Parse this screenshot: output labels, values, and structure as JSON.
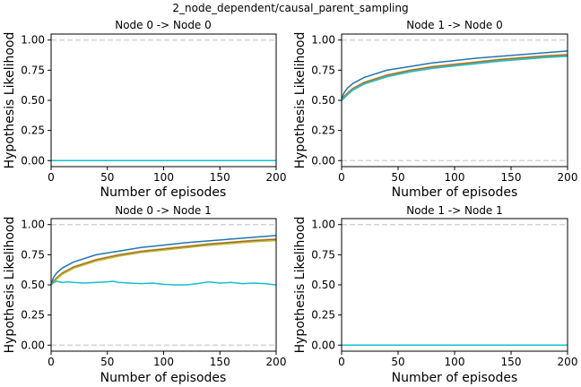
{
  "figure": {
    "suptitle": "2_node_dependent/causal_parent_sampling"
  },
  "chart_data": [
    {
      "type": "line",
      "title": "Node 0 -> Node 0",
      "xlabel": "Number of episodes",
      "ylabel": "Hypothesis Likelihood",
      "xlim": [
        0,
        200
      ],
      "ylim": [
        -0.05,
        1.05
      ],
      "xticks": [
        "0",
        "50",
        "100",
        "150",
        "200"
      ],
      "yticks": [
        "0.00",
        "0.25",
        "0.50",
        "0.75",
        "1.00"
      ],
      "reference_lines": [
        0.0,
        1.0
      ],
      "grid": false,
      "series": [
        {
          "color": "#17becf",
          "x": [
            0,
            200
          ],
          "y": [
            0.0,
            0.0
          ]
        }
      ]
    },
    {
      "type": "line",
      "title": "Node 1 -> Node 0",
      "xlabel": "Number of episodes",
      "ylabel": "Hypothesis Likelihood",
      "xlim": [
        0,
        200
      ],
      "ylim": [
        -0.05,
        1.05
      ],
      "xticks": [
        "0",
        "50",
        "100",
        "150",
        "200"
      ],
      "yticks": [
        "0.00",
        "0.25",
        "0.50",
        "0.75",
        "1.00"
      ],
      "reference_lines": [
        0.0,
        1.0
      ],
      "grid": false,
      "series": [
        {
          "color": "#1f77b4",
          "x": [
            0,
            2,
            5,
            10,
            20,
            40,
            60,
            80,
            100,
            120,
            140,
            160,
            180,
            200
          ],
          "y": [
            0.5,
            0.56,
            0.6,
            0.64,
            0.69,
            0.75,
            0.78,
            0.81,
            0.83,
            0.85,
            0.865,
            0.88,
            0.895,
            0.91
          ]
        },
        {
          "color": "#ff7f0e",
          "x": [
            0,
            2,
            5,
            10,
            20,
            40,
            60,
            80,
            100,
            120,
            140,
            160,
            180,
            200
          ],
          "y": [
            0.5,
            0.53,
            0.56,
            0.6,
            0.65,
            0.71,
            0.75,
            0.78,
            0.8,
            0.82,
            0.84,
            0.855,
            0.87,
            0.88
          ]
        },
        {
          "color": "#2ca02c",
          "x": [
            0,
            2,
            5,
            10,
            20,
            40,
            60,
            80,
            100,
            120,
            140,
            160,
            180,
            200
          ],
          "y": [
            0.5,
            0.525,
            0.555,
            0.595,
            0.645,
            0.705,
            0.745,
            0.775,
            0.795,
            0.815,
            0.835,
            0.85,
            0.865,
            0.875
          ]
        },
        {
          "color": "#d62728",
          "x": [
            0,
            2,
            5,
            10,
            20,
            40,
            60,
            80,
            100,
            120,
            140,
            160,
            180,
            200
          ],
          "y": [
            0.5,
            0.522,
            0.552,
            0.592,
            0.642,
            0.702,
            0.742,
            0.772,
            0.792,
            0.812,
            0.832,
            0.847,
            0.862,
            0.872
          ]
        },
        {
          "color": "#9467bd",
          "x": [
            0,
            2,
            5,
            10,
            20,
            40,
            60,
            80,
            100,
            120,
            140,
            160,
            180,
            200
          ],
          "y": [
            0.5,
            0.52,
            0.55,
            0.59,
            0.64,
            0.7,
            0.74,
            0.77,
            0.79,
            0.81,
            0.83,
            0.845,
            0.86,
            0.87
          ]
        },
        {
          "color": "#bcbd22",
          "x": [
            0,
            2,
            5,
            10,
            20,
            40,
            60,
            80,
            100,
            120,
            140,
            160,
            180,
            200
          ],
          "y": [
            0.5,
            0.518,
            0.548,
            0.588,
            0.638,
            0.698,
            0.738,
            0.768,
            0.788,
            0.808,
            0.828,
            0.843,
            0.858,
            0.868
          ]
        },
        {
          "color": "#17becf",
          "x": [
            0,
            2,
            5,
            10,
            20,
            40,
            60,
            80,
            100,
            120,
            140,
            160,
            180,
            200
          ],
          "y": [
            0.5,
            0.515,
            0.545,
            0.585,
            0.635,
            0.695,
            0.735,
            0.765,
            0.785,
            0.805,
            0.825,
            0.84,
            0.855,
            0.865
          ]
        }
      ]
    },
    {
      "type": "line",
      "title": "Node 0 -> Node 1",
      "xlabel": "Number of episodes",
      "ylabel": "Hypothesis Likelihood",
      "xlim": [
        0,
        200
      ],
      "ylim": [
        -0.05,
        1.05
      ],
      "xticks": [
        "0",
        "50",
        "100",
        "150",
        "200"
      ],
      "yticks": [
        "0.00",
        "0.25",
        "0.50",
        "0.75",
        "1.00"
      ],
      "reference_lines": [
        0.0,
        1.0
      ],
      "grid": false,
      "series": [
        {
          "color": "#1f77b4",
          "x": [
            0,
            2,
            5,
            10,
            20,
            40,
            60,
            80,
            100,
            120,
            140,
            160,
            180,
            200
          ],
          "y": [
            0.5,
            0.56,
            0.6,
            0.64,
            0.69,
            0.75,
            0.78,
            0.81,
            0.83,
            0.85,
            0.865,
            0.88,
            0.895,
            0.91
          ]
        },
        {
          "color": "#ff7f0e",
          "x": [
            0,
            2,
            5,
            10,
            20,
            40,
            60,
            80,
            100,
            120,
            140,
            160,
            180,
            200
          ],
          "y": [
            0.5,
            0.53,
            0.56,
            0.6,
            0.65,
            0.71,
            0.75,
            0.78,
            0.8,
            0.82,
            0.84,
            0.855,
            0.87,
            0.88
          ]
        },
        {
          "color": "#2ca02c",
          "x": [
            0,
            2,
            5,
            10,
            20,
            40,
            60,
            80,
            100,
            120,
            140,
            160,
            180,
            200
          ],
          "y": [
            0.5,
            0.525,
            0.555,
            0.595,
            0.645,
            0.705,
            0.745,
            0.775,
            0.795,
            0.815,
            0.835,
            0.85,
            0.865,
            0.875
          ]
        },
        {
          "color": "#d62728",
          "x": [
            0,
            2,
            5,
            10,
            20,
            40,
            60,
            80,
            100,
            120,
            140,
            160,
            180,
            200
          ],
          "y": [
            0.5,
            0.522,
            0.552,
            0.592,
            0.642,
            0.702,
            0.742,
            0.772,
            0.792,
            0.812,
            0.832,
            0.847,
            0.862,
            0.872
          ]
        },
        {
          "color": "#9467bd",
          "x": [
            0,
            2,
            5,
            10,
            20,
            40,
            60,
            80,
            100,
            120,
            140,
            160,
            180,
            200
          ],
          "y": [
            0.5,
            0.52,
            0.55,
            0.59,
            0.64,
            0.7,
            0.74,
            0.77,
            0.79,
            0.81,
            0.83,
            0.845,
            0.86,
            0.87
          ]
        },
        {
          "color": "#bcbd22",
          "x": [
            0,
            2,
            5,
            10,
            20,
            40,
            60,
            80,
            100,
            120,
            140,
            160,
            180,
            200
          ],
          "y": [
            0.5,
            0.518,
            0.548,
            0.588,
            0.638,
            0.698,
            0.738,
            0.768,
            0.788,
            0.808,
            0.828,
            0.843,
            0.858,
            0.868
          ]
        },
        {
          "color": "#17becf",
          "x": [
            0,
            5,
            10,
            15,
            20,
            30,
            40,
            50,
            55,
            60,
            70,
            80,
            90,
            100,
            110,
            120,
            125,
            130,
            140,
            150,
            160,
            170,
            180,
            190,
            200
          ],
          "y": [
            0.51,
            0.53,
            0.52,
            0.525,
            0.52,
            0.515,
            0.52,
            0.525,
            0.53,
            0.52,
            0.515,
            0.51,
            0.515,
            0.505,
            0.5,
            0.5,
            0.505,
            0.51,
            0.525,
            0.515,
            0.52,
            0.51,
            0.515,
            0.51,
            0.5
          ]
        }
      ]
    },
    {
      "type": "line",
      "title": "Node 1 -> Node 1",
      "xlabel": "Number of episodes",
      "ylabel": "Hypothesis Likelihood",
      "xlim": [
        0,
        200
      ],
      "ylim": [
        -0.05,
        1.05
      ],
      "xticks": [
        "0",
        "50",
        "100",
        "150",
        "200"
      ],
      "yticks": [
        "0.00",
        "0.25",
        "0.50",
        "0.75",
        "1.00"
      ],
      "reference_lines": [
        0.0,
        1.0
      ],
      "grid": false,
      "series": [
        {
          "color": "#17becf",
          "x": [
            0,
            200
          ],
          "y": [
            0.0,
            0.0
          ]
        }
      ]
    }
  ]
}
